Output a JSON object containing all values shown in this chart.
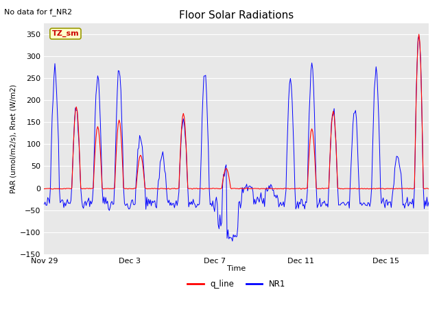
{
  "title": "Floor Solar Radiations",
  "subtitle": "No data for f_NR2",
  "xlabel": "Time",
  "ylabel": "PAR (umol/m2/s), Rnet (W/m2)",
  "ylim": [
    -150,
    375
  ],
  "yticks": [
    -150,
    -100,
    -50,
    0,
    50,
    100,
    150,
    200,
    250,
    300,
    350
  ],
  "xtick_labels": [
    "Nov 29",
    "Dec 3",
    "Dec 7",
    "Dec 11",
    "Dec 15"
  ],
  "xtick_pos": [
    0,
    4,
    8,
    12,
    16
  ],
  "xlim": [
    0,
    18
  ],
  "bg_color": "#e8e8e8",
  "fig_color": "#ffffff",
  "legend_labels": [
    "q_line",
    "NR1"
  ],
  "tag_text": "TZ_sm",
  "tag_bg": "#ffffcc",
  "tag_border": "#999900",
  "tag_text_color": "#cc0000",
  "day_nr1_peaks": [
    270,
    185,
    260,
    270,
    120,
    75,
    160,
    265,
    45,
    0,
    0,
    245,
    280,
    175,
    180,
    265,
    75,
    350
  ],
  "day_q_peaks": [
    0,
    185,
    140,
    155,
    75,
    0,
    170,
    0,
    45,
    0,
    0,
    0,
    135,
    175,
    0,
    0,
    0,
    350
  ]
}
